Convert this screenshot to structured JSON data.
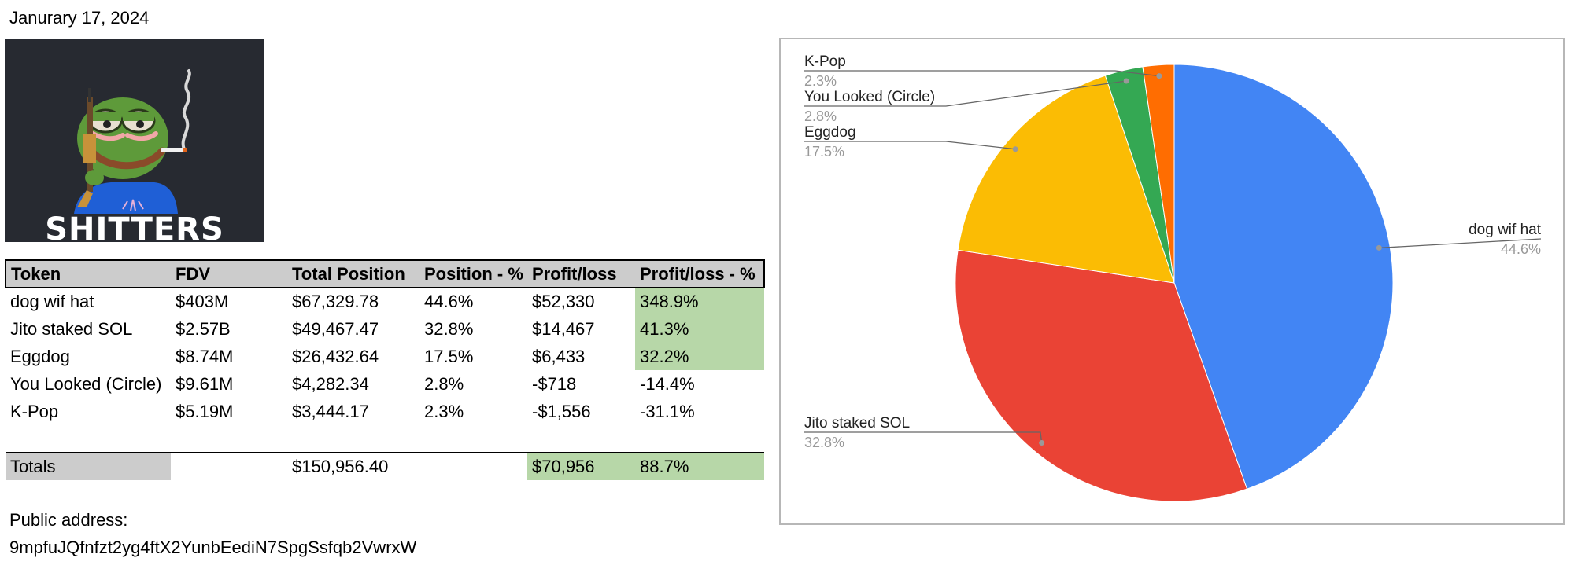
{
  "date": "Janurary 17, 2024",
  "logo": {
    "text": "SHITTERS",
    "image": "pepe-frog-with-rifle-and-cigarette"
  },
  "table": {
    "headers": [
      "Token",
      "FDV",
      "Total Position",
      "Position - %",
      "Profit/loss",
      "Profit/loss - %"
    ],
    "rows": [
      [
        "dog wif hat",
        "$403M",
        "$67,329.78",
        "44.6%",
        "$52,330",
        "348.9%"
      ],
      [
        "Jito staked SOL",
        "$2.57B",
        "$49,467.47",
        "32.8%",
        "$14,467",
        "41.3%"
      ],
      [
        "Eggdog",
        "$8.74M",
        "$26,432.64",
        "17.5%",
        "$6,433",
        "32.2%"
      ],
      [
        "You Looked (Circle)",
        "$9.61M",
        "$4,282.34",
        "2.8%",
        "-$718",
        "-14.4%"
      ],
      [
        "K-Pop",
        "$5.19M",
        "$3,444.17",
        "2.3%",
        "-$1,556",
        "-31.1%"
      ]
    ],
    "totals": {
      "label": "Totals",
      "total_position": "$150,956.40",
      "profit_loss": "$70,956",
      "profit_loss_pct": "88.7%"
    }
  },
  "address": {
    "label": "Public address:",
    "value": "9mpfuJQfnfzt2yg4ftX2YunbEediN7SpgSsfqb2VwrxW"
  },
  "chart_data": {
    "type": "pie",
    "title": "",
    "slices": [
      {
        "label": "dog wif hat",
        "value": 44.6,
        "pct_label": "44.6%",
        "color": "#4285f4"
      },
      {
        "label": "Jito staked SOL",
        "value": 32.8,
        "pct_label": "32.8%",
        "color": "#ea4335"
      },
      {
        "label": "Eggdog",
        "value": 17.5,
        "pct_label": "17.5%",
        "color": "#fbbc04"
      },
      {
        "label": "You Looked (Circle)",
        "value": 2.8,
        "pct_label": "2.8%",
        "color": "#34a853"
      },
      {
        "label": "K-Pop",
        "value": 2.3,
        "pct_label": "2.3%",
        "color": "#ff6d01"
      }
    ]
  }
}
